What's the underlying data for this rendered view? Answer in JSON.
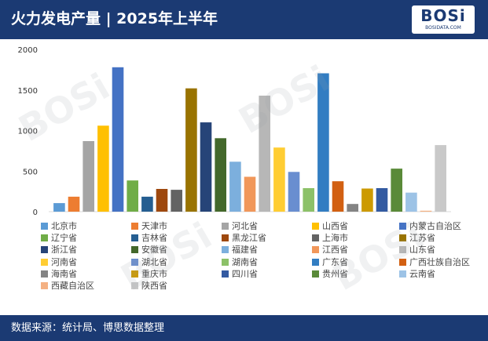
{
  "header": {
    "title": "火力发电产量 | 2025年上半年",
    "logo_text": "BOSi",
    "logo_subtext": "BOSIDATA.COM"
  },
  "footer": {
    "source": "数据来源：统计局、博思数据整理"
  },
  "watermark": {
    "text": "BOSi"
  },
  "chart_data": {
    "type": "bar",
    "title": "火力发电产量 | 2025年上半年",
    "xlabel": "",
    "ylabel": "",
    "ylim": [
      0,
      2000
    ],
    "yticks": [
      0,
      500,
      1000,
      1500,
      2000
    ],
    "grid": false,
    "legend_position": "bottom",
    "series": [
      {
        "name": "北京市",
        "value": 105,
        "color": "#5b9bd5"
      },
      {
        "name": "天津市",
        "value": 185,
        "color": "#ed7d31"
      },
      {
        "name": "河北省",
        "value": 870,
        "color": "#a5a5a5"
      },
      {
        "name": "山西省",
        "value": 1060,
        "color": "#ffc000"
      },
      {
        "name": "内蒙古自治区",
        "value": 1780,
        "color": "#4472c4"
      },
      {
        "name": "辽宁省",
        "value": 385,
        "color": "#70ad47"
      },
      {
        "name": "吉林省",
        "value": 185,
        "color": "#255e91"
      },
      {
        "name": "黑龙江省",
        "value": 280,
        "color": "#9e480e"
      },
      {
        "name": "上海市",
        "value": 270,
        "color": "#636363"
      },
      {
        "name": "江苏省",
        "value": 1520,
        "color": "#997300"
      },
      {
        "name": "浙江省",
        "value": 1100,
        "color": "#264478"
      },
      {
        "name": "安徽省",
        "value": 905,
        "color": "#43682b"
      },
      {
        "name": "福建省",
        "value": 615,
        "color": "#7cafdd"
      },
      {
        "name": "江西省",
        "value": 430,
        "color": "#f1975a"
      },
      {
        "name": "山东省",
        "value": 1430,
        "color": "#b7b7b7"
      },
      {
        "name": "河南省",
        "value": 790,
        "color": "#ffcd33"
      },
      {
        "name": "湖北省",
        "value": 490,
        "color": "#698ed0"
      },
      {
        "name": "湖南省",
        "value": 290,
        "color": "#8cc168"
      },
      {
        "name": "广东省",
        "value": 1705,
        "color": "#327dc2"
      },
      {
        "name": "广西壮族自治区",
        "value": 375,
        "color": "#d26012"
      },
      {
        "name": "海南省",
        "value": 95,
        "color": "#848484"
      },
      {
        "name": "重庆市",
        "value": 285,
        "color": "#cc9a00"
      },
      {
        "name": "四川省",
        "value": 290,
        "color": "#335aa1"
      },
      {
        "name": "贵州省",
        "value": 530,
        "color": "#5a8a39"
      },
      {
        "name": "云南省",
        "value": 235,
        "color": "#9dc3e6"
      },
      {
        "name": "西藏自治区",
        "value": 12,
        "color": "#f4b183"
      },
      {
        "name": "陕西省",
        "value": 820,
        "color": "#c9c9c9"
      }
    ]
  }
}
